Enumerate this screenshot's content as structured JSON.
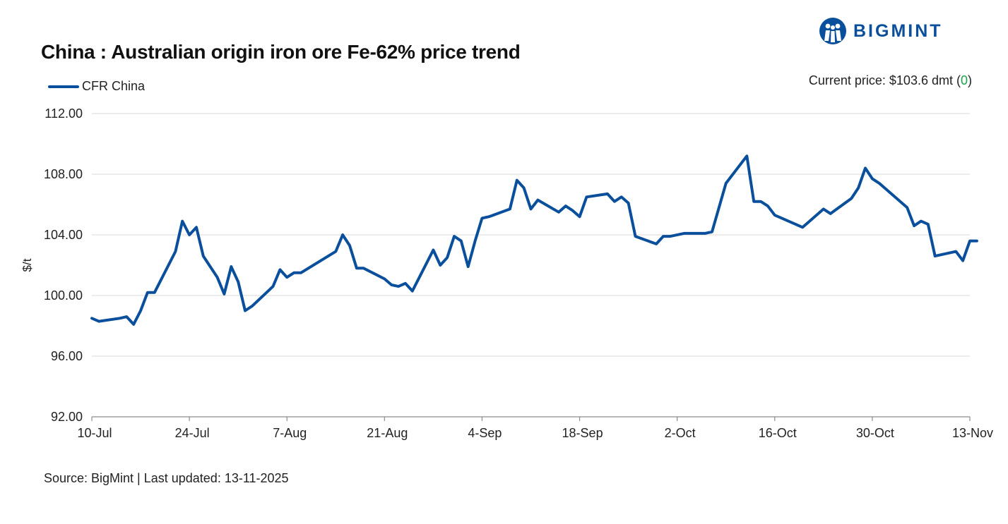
{
  "header": {
    "title": "China : Australian origin iron ore Fe-62% price trend",
    "current_price_prefix": "Current price: $103.6 dmt (",
    "current_price_change": "0",
    "current_price_suffix": ")"
  },
  "logo": {
    "text": "BIGMINT",
    "icon": "bigmint-people-icon"
  },
  "footer": {
    "source": "Source: BigMint | Last updated: 13-11-2025"
  },
  "colors": {
    "line": "#0a4f9c",
    "grid": "#d9d9d9",
    "positive": "#19a34a",
    "logo": "#0a4f9c"
  },
  "chart_data": {
    "type": "line",
    "ylabel": "$/t",
    "xlabel": "",
    "ylim": [
      92,
      112
    ],
    "yticks": [
      "92.00",
      "96.00",
      "100.00",
      "104.00",
      "108.00",
      "112.00"
    ],
    "xlim": [
      "2025-07-10",
      "2025-11-13"
    ],
    "xticks": [
      {
        "date": "2025-07-10",
        "label": "10-Jul"
      },
      {
        "date": "2025-07-24",
        "label": "24-Jul"
      },
      {
        "date": "2025-08-07",
        "label": "7-Aug"
      },
      {
        "date": "2025-08-21",
        "label": "21-Aug"
      },
      {
        "date": "2025-09-04",
        "label": "4-Sep"
      },
      {
        "date": "2025-09-18",
        "label": "18-Sep"
      },
      {
        "date": "2025-10-02",
        "label": "2-Oct"
      },
      {
        "date": "2025-10-16",
        "label": "16-Oct"
      },
      {
        "date": "2025-10-30",
        "label": "30-Oct"
      },
      {
        "date": "2025-11-13",
        "label": "13-Nov"
      }
    ],
    "grid": true,
    "legend_position": "top-left",
    "series": [
      {
        "name": "CFR China",
        "points": [
          [
            "2025-07-10",
            98.5
          ],
          [
            "2025-07-11",
            98.3
          ],
          [
            "2025-07-14",
            98.5
          ],
          [
            "2025-07-15",
            98.6
          ],
          [
            "2025-07-16",
            98.1
          ],
          [
            "2025-07-17",
            99.0
          ],
          [
            "2025-07-18",
            100.2
          ],
          [
            "2025-07-19",
            100.2
          ],
          [
            "2025-07-22",
            102.9
          ],
          [
            "2025-07-23",
            104.9
          ],
          [
            "2025-07-24",
            104.0
          ],
          [
            "2025-07-25",
            104.5
          ],
          [
            "2025-07-26",
            102.6
          ],
          [
            "2025-07-28",
            101.2
          ],
          [
            "2025-07-29",
            100.1
          ],
          [
            "2025-07-30",
            101.9
          ],
          [
            "2025-07-31",
            100.9
          ],
          [
            "2025-08-01",
            99.0
          ],
          [
            "2025-08-02",
            99.3
          ],
          [
            "2025-08-05",
            100.6
          ],
          [
            "2025-08-06",
            101.7
          ],
          [
            "2025-08-07",
            101.2
          ],
          [
            "2025-08-08",
            101.5
          ],
          [
            "2025-08-09",
            101.5
          ],
          [
            "2025-08-14",
            102.9
          ],
          [
            "2025-08-15",
            104.0
          ],
          [
            "2025-08-16",
            103.3
          ],
          [
            "2025-08-17",
            101.8
          ],
          [
            "2025-08-18",
            101.8
          ],
          [
            "2025-08-21",
            101.1
          ],
          [
            "2025-08-22",
            100.7
          ],
          [
            "2025-08-23",
            100.6
          ],
          [
            "2025-08-24",
            100.8
          ],
          [
            "2025-08-25",
            100.3
          ],
          [
            "2025-08-28",
            103.0
          ],
          [
            "2025-08-29",
            102.0
          ],
          [
            "2025-08-30",
            102.5
          ],
          [
            "2025-08-31",
            103.9
          ],
          [
            "2025-09-01",
            103.6
          ],
          [
            "2025-09-02",
            101.9
          ],
          [
            "2025-09-03",
            103.6
          ],
          [
            "2025-09-04",
            105.1
          ],
          [
            "2025-09-05",
            105.2
          ],
          [
            "2025-09-08",
            105.7
          ],
          [
            "2025-09-09",
            107.6
          ],
          [
            "2025-09-10",
            107.1
          ],
          [
            "2025-09-11",
            105.7
          ],
          [
            "2025-09-12",
            106.3
          ],
          [
            "2025-09-15",
            105.5
          ],
          [
            "2025-09-16",
            105.9
          ],
          [
            "2025-09-17",
            105.6
          ],
          [
            "2025-09-18",
            105.2
          ],
          [
            "2025-09-19",
            106.5
          ],
          [
            "2025-09-22",
            106.7
          ],
          [
            "2025-09-23",
            106.2
          ],
          [
            "2025-09-24",
            106.5
          ],
          [
            "2025-09-25",
            106.1
          ],
          [
            "2025-09-26",
            103.9
          ],
          [
            "2025-09-29",
            103.4
          ],
          [
            "2025-09-30",
            103.9
          ],
          [
            "2025-10-01",
            103.9
          ],
          [
            "2025-10-03",
            104.1
          ],
          [
            "2025-10-05",
            104.1
          ],
          [
            "2025-10-06",
            104.1
          ],
          [
            "2025-10-07",
            104.2
          ],
          [
            "2025-10-09",
            107.4
          ],
          [
            "2025-10-12",
            109.2
          ],
          [
            "2025-10-13",
            106.2
          ],
          [
            "2025-10-14",
            106.2
          ],
          [
            "2025-10-15",
            105.9
          ],
          [
            "2025-10-16",
            105.3
          ],
          [
            "2025-10-20",
            104.5
          ],
          [
            "2025-10-23",
            105.7
          ],
          [
            "2025-10-24",
            105.4
          ],
          [
            "2025-10-27",
            106.4
          ],
          [
            "2025-10-28",
            107.1
          ],
          [
            "2025-10-29",
            108.4
          ],
          [
            "2025-10-30",
            107.7
          ],
          [
            "2025-10-31",
            107.4
          ],
          [
            "2025-11-04",
            105.8
          ],
          [
            "2025-11-05",
            104.6
          ],
          [
            "2025-11-06",
            104.9
          ],
          [
            "2025-11-07",
            104.7
          ],
          [
            "2025-11-08",
            102.6
          ],
          [
            "2025-11-11",
            102.9
          ],
          [
            "2025-11-12",
            102.3
          ],
          [
            "2025-11-13",
            103.6
          ],
          [
            "2025-11-14",
            103.6
          ]
        ]
      }
    ]
  }
}
